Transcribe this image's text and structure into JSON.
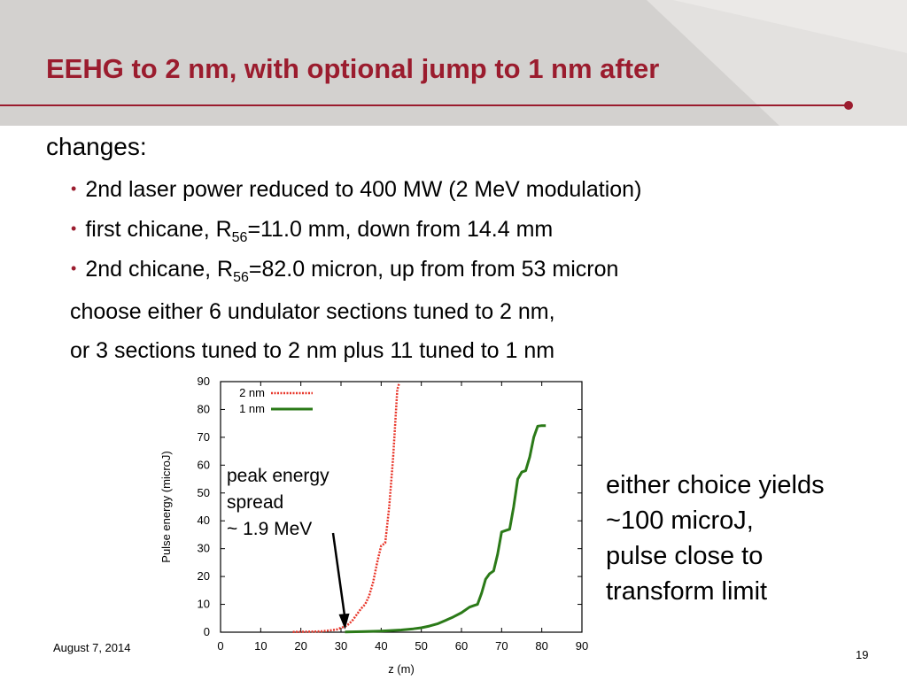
{
  "slide": {
    "title": "EEHG to 2 nm, with optional jump to 1 nm after",
    "intro": "changes:",
    "bullets": [
      {
        "before": "2nd laser power reduced to 400 MW (2 MeV modulation)",
        "sub": "",
        "after": ""
      },
      {
        "before": "first chicane, R",
        "sub": "56",
        "after": "=11.0 mm, down from 14.4 mm"
      },
      {
        "before": "2nd chicane, R",
        "sub": "56",
        "after": "=82.0 micron, up from from 53 micron"
      }
    ],
    "choice_line1": "choose either 6 undulator sections tuned to 2 nm,",
    "choice_line2": "or 3 sections tuned to 2 nm plus 11 tuned to 1 nm",
    "conclusion": [
      "either choice yields",
      "~100 microJ,",
      "pulse close to",
      "transform limit"
    ],
    "footer_date": "August 7, 2014",
    "page_number": "19"
  },
  "colors": {
    "title": "#9b1c2e",
    "header_band": "#d3d1cf",
    "series_2nm": "#e8372b",
    "series_1nm": "#2b7a18"
  },
  "chart_data": {
    "type": "line",
    "xlabel": "z (m)",
    "ylabel": "Pulse energy (microJ)",
    "xlim": [
      0,
      90
    ],
    "ylim": [
      0,
      90
    ],
    "xticks": [
      0,
      10,
      20,
      30,
      40,
      50,
      60,
      70,
      80,
      90
    ],
    "yticks": [
      0,
      10,
      20,
      30,
      40,
      50,
      60,
      70,
      80,
      90
    ],
    "legend_position": "top-left",
    "annotation": {
      "lines": [
        "peak energy",
        "spread",
        "~ 1.9 MeV"
      ],
      "arrow_to": [
        31,
        1
      ]
    },
    "series": [
      {
        "name": "2 nm",
        "style": "dotted",
        "x": [
          18,
          22,
          25,
          27,
          29,
          30,
          31,
          32,
          33,
          34,
          35,
          36,
          37,
          38,
          39,
          40,
          41,
          42,
          43,
          44,
          44.5
        ],
        "y": [
          0.1,
          0.2,
          0.3,
          0.6,
          1.0,
          1.6,
          2.0,
          3.0,
          4.5,
          6.5,
          8.5,
          10.0,
          13.0,
          18.0,
          25.0,
          31.0,
          32.0,
          45.0,
          63.0,
          87.0,
          89.5
        ]
      },
      {
        "name": "1 nm",
        "style": "solid",
        "x": [
          31,
          35,
          40,
          45,
          48,
          50,
          52,
          54,
          56,
          58,
          60,
          62,
          63,
          64,
          65,
          66,
          67,
          68,
          69,
          70,
          71,
          72,
          73,
          74,
          75,
          76,
          77,
          78,
          79,
          80,
          81
        ],
        "y": [
          0.1,
          0.2,
          0.4,
          0.8,
          1.2,
          1.6,
          2.2,
          3.0,
          4.2,
          5.5,
          7.0,
          9.0,
          9.5,
          10.0,
          14.0,
          19.0,
          21.0,
          22.0,
          28.0,
          36.0,
          36.5,
          37.0,
          45.0,
          55.0,
          57.5,
          58.0,
          63.0,
          70.0,
          74.0,
          74.2,
          74.2
        ]
      }
    ]
  }
}
